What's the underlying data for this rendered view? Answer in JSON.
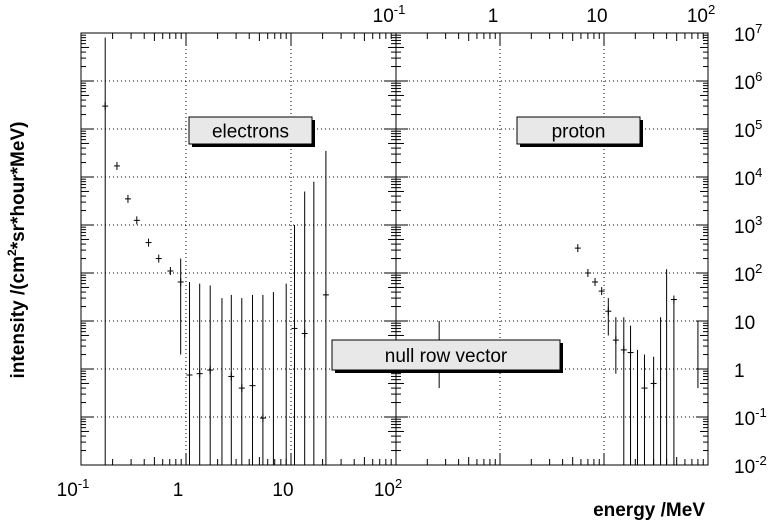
{
  "chart_data": {
    "type": "scatter",
    "ylabel_text": "intensity /(cm",
    "ylabel_sup": "2",
    "ylabel_rest": "*sr*hour*MeV)",
    "xlabel": "energy /MeV",
    "grid": true,
    "bottom_axis": {
      "scale": "log",
      "range": [
        0.1,
        100
      ],
      "ticks": [
        {
          "value": 0.1,
          "base": "10",
          "exp": "-1"
        },
        {
          "value": 1,
          "base": "1",
          "exp": ""
        },
        {
          "value": 10,
          "base": "10",
          "exp": ""
        },
        {
          "value": 100,
          "base": "10",
          "exp": "2"
        }
      ]
    },
    "top_axis": {
      "scale": "log",
      "range": [
        0.1,
        100
      ],
      "ticks": [
        {
          "value": 0.1,
          "base": "10",
          "exp": "-1"
        },
        {
          "value": 1,
          "base": "1",
          "exp": ""
        },
        {
          "value": 10,
          "base": "10",
          "exp": ""
        },
        {
          "value": 100,
          "base": "10",
          "exp": "2"
        }
      ]
    },
    "right_axis": {
      "scale": "log",
      "range": [
        0.01,
        10000000
      ],
      "ticks": [
        {
          "value": 10000000,
          "base": "10",
          "exp": "7"
        },
        {
          "value": 1000000,
          "base": "10",
          "exp": "6"
        },
        {
          "value": 100000,
          "base": "10",
          "exp": "5"
        },
        {
          "value": 10000,
          "base": "10",
          "exp": "4"
        },
        {
          "value": 1000,
          "base": "10",
          "exp": "3"
        },
        {
          "value": 100,
          "base": "10",
          "exp": "2"
        },
        {
          "value": 10,
          "base": "10",
          "exp": ""
        },
        {
          "value": 1,
          "base": "1",
          "exp": ""
        },
        {
          "value": 0.1,
          "base": "10",
          "exp": "-1"
        },
        {
          "value": 0.01,
          "base": "10",
          "exp": "-2"
        }
      ]
    },
    "panels": [
      {
        "name": "electrons",
        "label": "electrons",
        "points": [
          {
            "x": 0.17,
            "y": 300000,
            "lo": 0.01,
            "hi": 8000000,
            "xw": 0.008
          },
          {
            "x": 0.22,
            "y": 17000,
            "xw": 0.012
          },
          {
            "x": 0.28,
            "y": 3500,
            "xw": 0.015
          },
          {
            "x": 0.34,
            "y": 1250,
            "xw": 0.018
          },
          {
            "x": 0.44,
            "y": 430,
            "xw": 0.02
          },
          {
            "x": 0.55,
            "y": 200,
            "xw": 0.025
          },
          {
            "x": 0.71,
            "y": 110,
            "xw": 0.03
          },
          {
            "x": 0.89,
            "y": 65,
            "lo": 2,
            "hi": 200,
            "xw": 0.04
          },
          {
            "x": 1.08,
            "y": 0.75,
            "lo": 0.01,
            "hi": 65,
            "xw": 0.06
          },
          {
            "x": 1.35,
            "y": 0.8,
            "lo": 0.01,
            "hi": 60,
            "xw": 0.07
          },
          {
            "x": 1.7,
            "y": 0.95,
            "lo": 0.01,
            "hi": 55,
            "xw": 0.08
          },
          {
            "x": 2.2,
            "y": null,
            "lo": 0.01,
            "hi": 30,
            "xw": 0
          },
          {
            "x": 2.7,
            "y": 0.7,
            "lo": 0.01,
            "hi": 35,
            "xw": 0.12
          },
          {
            "x": 3.4,
            "y": 0.4,
            "lo": 0.01,
            "hi": 30,
            "xw": 0.15
          },
          {
            "x": 4.3,
            "y": 0.45,
            "lo": 0.01,
            "hi": 35,
            "xw": 0.2
          },
          {
            "x": 5.4,
            "y": 0.095,
            "lo": 0.01,
            "hi": 35,
            "xw": 0.25
          },
          {
            "x": 6.8,
            "y": null,
            "lo": 0.01,
            "hi": 40,
            "xw": 0
          },
          {
            "x": 9.0,
            "y": null,
            "lo": 0.01,
            "hi": 60,
            "xw": 0
          },
          {
            "x": 10.8,
            "y": 7,
            "lo": 0.01,
            "hi": 1000,
            "xw": 0.6
          },
          {
            "x": 13.5,
            "y": 5.5,
            "lo": 0.01,
            "hi": 5000,
            "xw": 0.7
          },
          {
            "x": 16.5,
            "y": null,
            "lo": 0.01,
            "hi": 8000,
            "xw": 0
          },
          {
            "x": 21.5,
            "y": 35,
            "lo": 0.01,
            "hi": 35000,
            "xw": 1.2
          }
        ]
      },
      {
        "name": "null-row",
        "label": "null row vector",
        "points": [
          {
            "x": 0.26,
            "y": null,
            "lo": 0.4,
            "hi": 10,
            "xw": 0
          },
          {
            "x": 80,
            "y": null,
            "lo": 0.4,
            "hi": 10,
            "xw": 0
          }
        ]
      },
      {
        "name": "proton",
        "label": "proton",
        "points": [
          {
            "x": 5.6,
            "y": 330,
            "xw": 0.3
          },
          {
            "x": 7.0,
            "y": 100,
            "xw": 0.35
          },
          {
            "x": 8.2,
            "y": 65,
            "xw": 0.4
          },
          {
            "x": 9.5,
            "y": 42,
            "xw": 0.45
          },
          {
            "x": 11.0,
            "y": 16,
            "lo": 5,
            "hi": 30,
            "xw": 0.5
          },
          {
            "x": 13.0,
            "y": 4,
            "lo": 0.8,
            "hi": 12,
            "xw": 0.6
          },
          {
            "x": 15.5,
            "y": 2.5,
            "lo": 0.01,
            "hi": 12,
            "xw": 0.7
          },
          {
            "x": 18.0,
            "y": 2.2,
            "lo": 0.01,
            "hi": 8,
            "xw": 0.8
          },
          {
            "x": 21.0,
            "y": null,
            "lo": 0.01,
            "hi": 2.5,
            "xw": 0
          },
          {
            "x": 24.5,
            "y": 0.4,
            "lo": 0.01,
            "hi": 2,
            "xw": 1.0
          },
          {
            "x": 30.0,
            "y": 0.5,
            "lo": 0.01,
            "hi": 1.8,
            "xw": 1.2
          },
          {
            "x": 35.0,
            "y": null,
            "lo": 0.01,
            "hi": 12,
            "xw": 0
          },
          {
            "x": 40.0,
            "y": null,
            "lo": 0.01,
            "hi": 120,
            "xw": 0
          },
          {
            "x": 47.0,
            "y": 28,
            "lo": 0.01,
            "hi": 30,
            "xw": 3
          }
        ]
      }
    ]
  }
}
